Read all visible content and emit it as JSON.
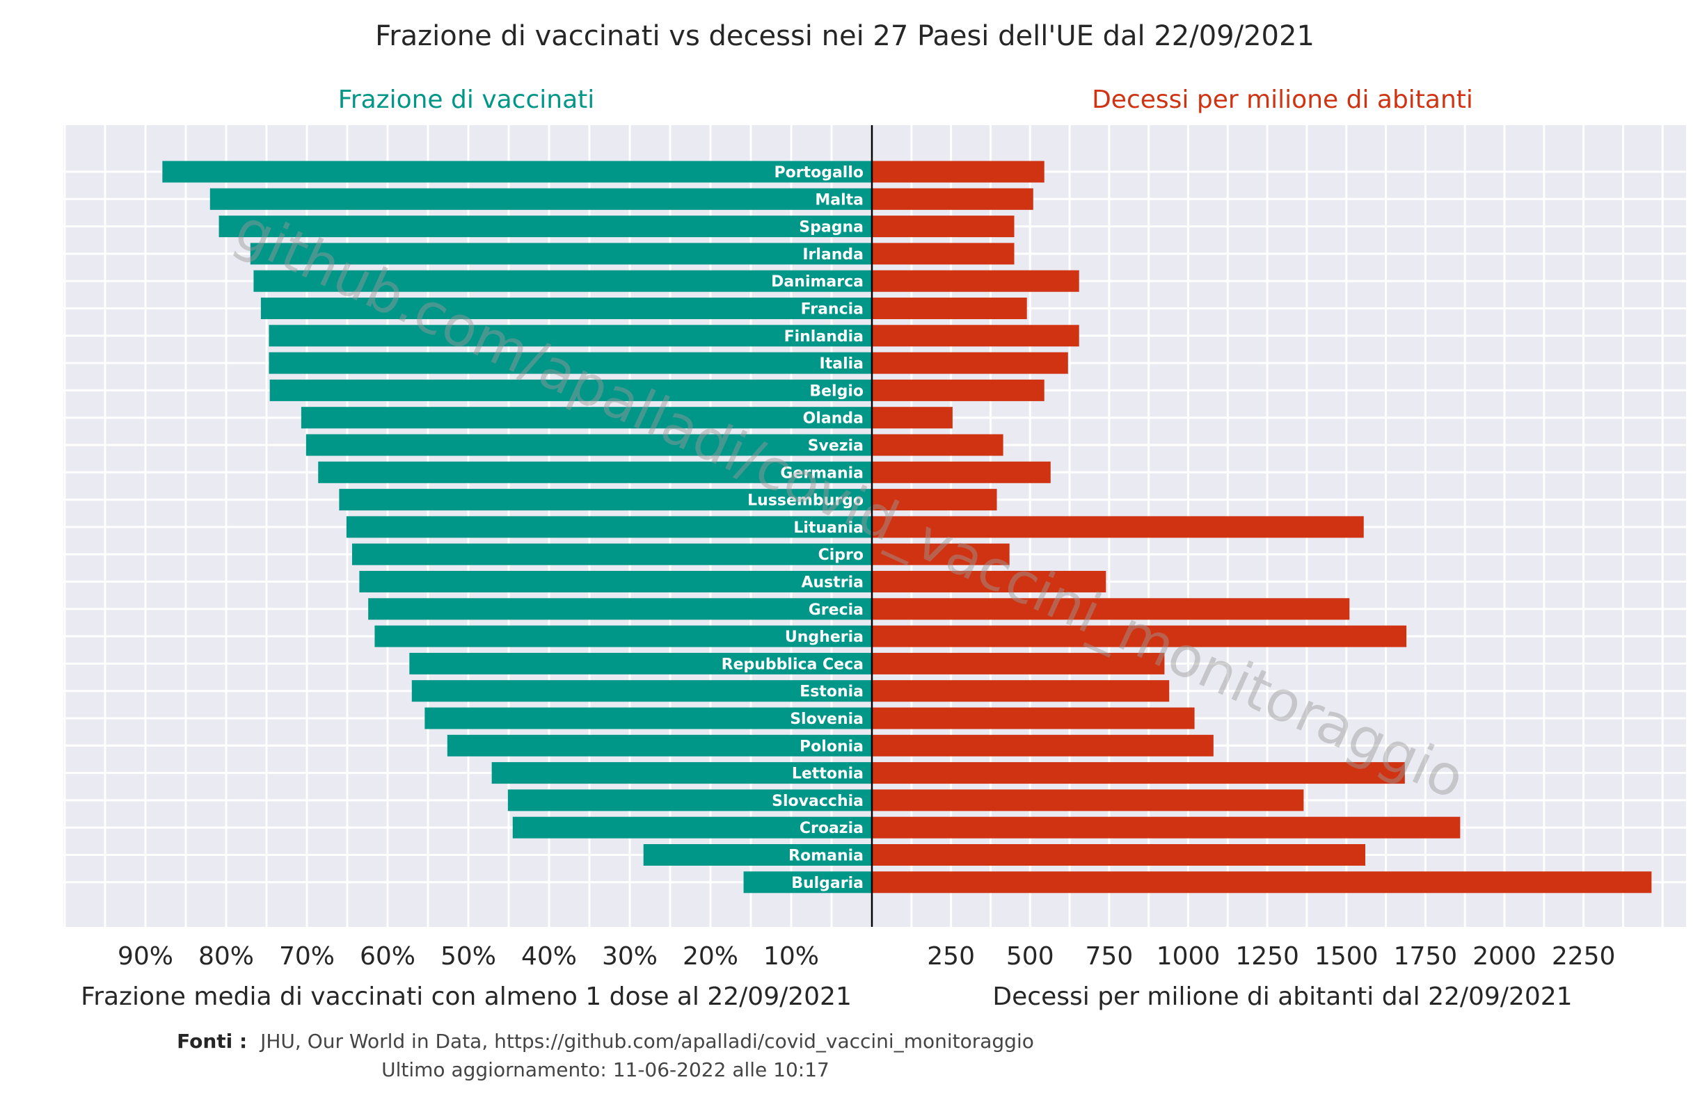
{
  "chart_data": {
    "type": "bar",
    "orientation": "horizontal-butterfly",
    "title": "Frazione di vaccinati vs decessi nei 27 Paesi dell'UE dal 22/09/2021",
    "left_panel": {
      "subtitle": "Frazione di vaccinati",
      "xlabel": "Frazione media di vaccinati con almeno 1 dose al 22/09/2021",
      "xticks": [
        "90%",
        "80%",
        "70%",
        "60%",
        "50%",
        "40%",
        "30%",
        "20%",
        "10%"
      ],
      "xtick_values": [
        90,
        80,
        70,
        60,
        50,
        40,
        30,
        20,
        10
      ],
      "xlim": [
        0,
        100
      ],
      "color": "#009688"
    },
    "right_panel": {
      "subtitle": "Decessi per milione di abitanti",
      "xlabel": "Decessi per milione di abitanti dal 22/09/2021",
      "xticks": [
        "250",
        "500",
        "750",
        "1000",
        "1250",
        "1500",
        "1750",
        "2000",
        "2250"
      ],
      "xtick_values": [
        250,
        500,
        750,
        1000,
        1250,
        1500,
        1750,
        2000,
        2250
      ],
      "xlim": [
        0,
        2550
      ],
      "color": "#d03312"
    },
    "categories": [
      "Portogallo",
      "Malta",
      "Spagna",
      "Irlanda",
      "Danimarca",
      "Francia",
      "Finlandia",
      "Italia",
      "Belgio",
      "Olanda",
      "Svezia",
      "Germania",
      "Lussemburgo",
      "Lituania",
      "Cipro",
      "Austria",
      "Grecia",
      "Ungheria",
      "Repubblica Ceca",
      "Estonia",
      "Slovenia",
      "Polonia",
      "Lettonia",
      "Slovacchia",
      "Croazia",
      "Romania",
      "Bulgaria"
    ],
    "series": [
      {
        "name": "Frazione di vaccinati",
        "values": [
          87.9,
          82.0,
          80.9,
          77.0,
          76.6,
          75.7,
          74.7,
          74.7,
          74.6,
          70.7,
          70.1,
          68.6,
          66.0,
          65.1,
          64.4,
          63.5,
          62.4,
          61.6,
          57.3,
          57.0,
          55.4,
          52.6,
          47.1,
          45.1,
          44.5,
          28.3,
          15.9
        ]
      },
      {
        "name": "Decessi per milione di abitanti",
        "values": [
          545,
          510,
          450,
          450,
          655,
          490,
          655,
          620,
          545,
          255,
          415,
          565,
          395,
          1555,
          435,
          740,
          1510,
          1690,
          925,
          940,
          1020,
          1080,
          1685,
          1365,
          1860,
          1560,
          2465
        ]
      }
    ],
    "grid": true,
    "legend": "none"
  },
  "watermark": "github.com/apalladi/covid_vaccini_monitoraggio",
  "footer": {
    "sources_label": "Fonti :",
    "sources_text": "JHU, Our World in Data, https://github.com/apalladi/covid_vaccini_monitoraggio",
    "updated": "Ultimo aggiornamento: 11-06-2022 alle 10:17"
  },
  "colors": {
    "plot_bg": "#eaeaf2",
    "grid": "#ffffff",
    "vaccinated": "#009688",
    "deaths": "#d03312"
  }
}
